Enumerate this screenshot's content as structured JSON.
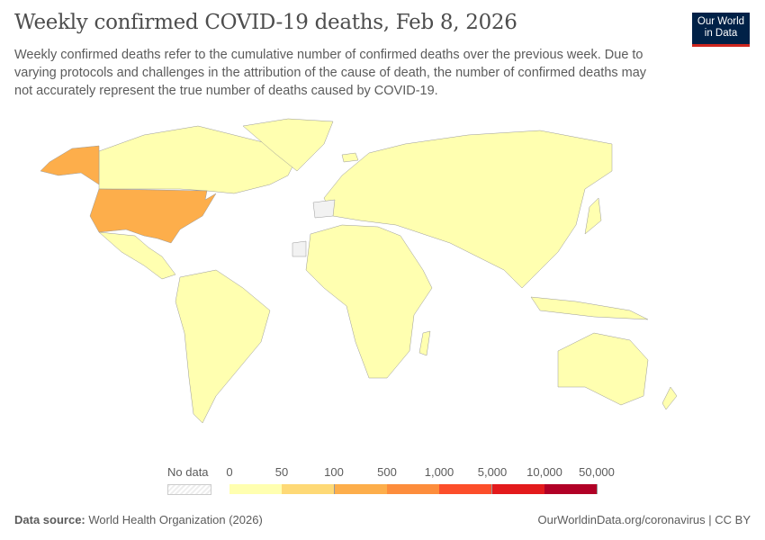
{
  "header": {
    "title": "Weekly confirmed COVID-19 deaths, Feb 8, 2026",
    "subtitle": "Weekly confirmed deaths refer to the cumulative number of confirmed deaths over the previous week. Due to varying protocols and challenges in the attribution of the cause of death, the number of confirmed deaths may not accurately represent the true number of deaths caused by COVID-19.",
    "logo_line1": "Our World",
    "logo_line2": "in Data"
  },
  "map": {
    "date": "Feb 8, 2026",
    "default_bin": "0–50",
    "highlighted": [
      {
        "country": "United States",
        "bin": "100–500"
      }
    ],
    "no_data_regions": [
      "Western Sahara",
      "Spain"
    ]
  },
  "legend": {
    "no_data_label": "No data",
    "ticks": [
      "0",
      "50",
      "100",
      "500",
      "1,000",
      "5,000",
      "10,000",
      "50,000"
    ],
    "colors": [
      "#ffffb0",
      "#fed976",
      "#fdae4b",
      "#fd8d3c",
      "#fc4e2a",
      "#e31a1c",
      "#b10026"
    ]
  },
  "footer": {
    "source_label": "Data source:",
    "source": "World Health Organization (2026)",
    "url": "OurWorldinData.org/coronavirus | CC BY"
  }
}
